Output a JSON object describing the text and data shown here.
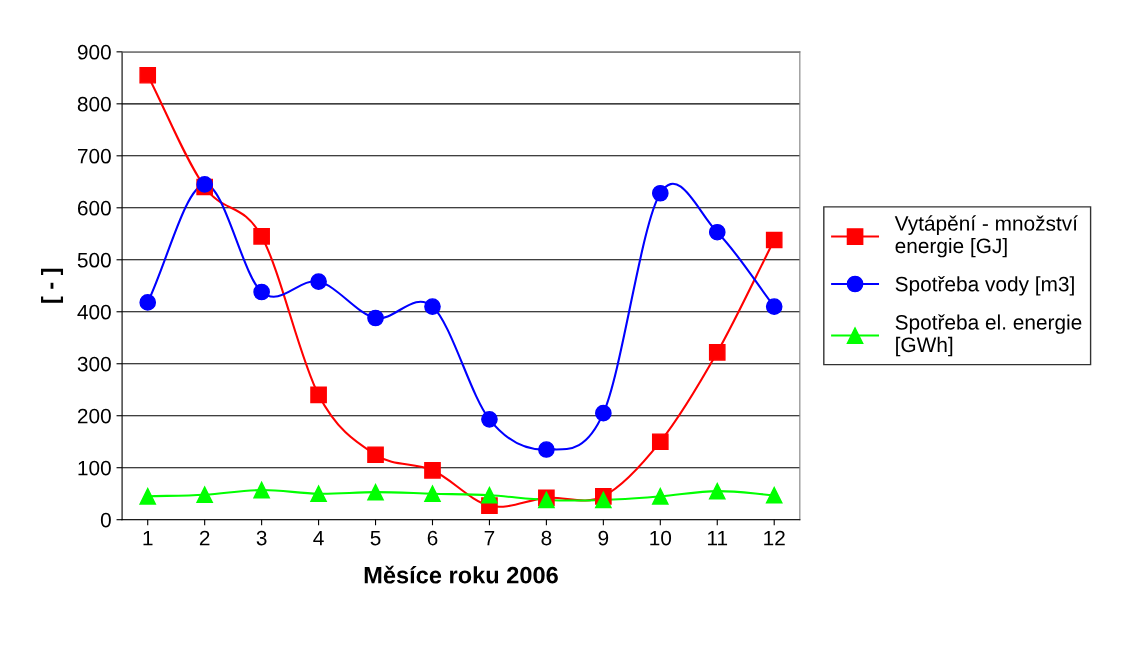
{
  "chart_data": {
    "type": "line",
    "xlabel": "Měsíce roku 2006",
    "ylabel": "[ - ]",
    "categories": [
      "1",
      "2",
      "3",
      "4",
      "5",
      "6",
      "7",
      "8",
      "9",
      "10",
      "11",
      "12"
    ],
    "series": [
      {
        "name": "Vytápění - množství\nenergie [GJ]",
        "color": "#ff0000",
        "marker": "square",
        "values": [
          855,
          640,
          545,
          240,
          125,
          95,
          27,
          42,
          45,
          150,
          322,
          538
        ]
      },
      {
        "name": "Spotřeba vody [m3]",
        "color": "#0000ff",
        "marker": "circle",
        "values": [
          418,
          645,
          438,
          458,
          388,
          410,
          193,
          135,
          205,
          628,
          553,
          410
        ]
      },
      {
        "name": "Spotřeba el. energie\n[GWh]",
        "color": "#00ff00",
        "marker": "triangle",
        "values": [
          45,
          48,
          57,
          50,
          53,
          50,
          47,
          38,
          38,
          45,
          55,
          47
        ]
      }
    ],
    "ylim": [
      0,
      900
    ],
    "yticks": [
      0,
      100,
      200,
      300,
      400,
      500,
      600,
      700,
      800,
      900
    ],
    "grid": "y",
    "legend": "right"
  }
}
